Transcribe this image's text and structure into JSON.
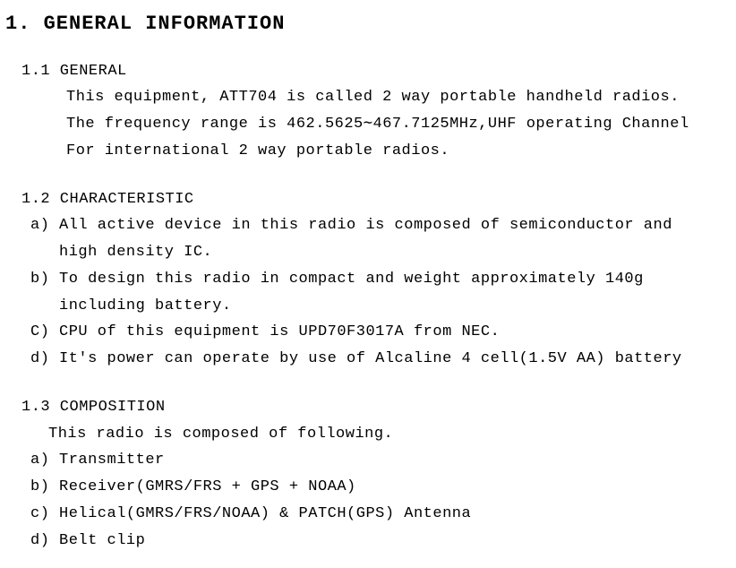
{
  "title": "1. GENERAL INFORMATION",
  "sec_1_1": {
    "heading": "1.1 GENERAL",
    "line1": "This equipment, ATT704 is called 2 way portable handheld radios.",
    "line2": "The frequency range is 462.5625∼467.7125MHz,UHF operating Channel",
    "line3": "For international 2 way portable radios."
  },
  "sec_1_2": {
    "heading": "1.2 CHARACTERISTIC",
    "a_lbl": "a)",
    "a": "All active device in this radio is composed of semiconductor and",
    "a_cont": "high density IC.",
    "b_lbl": "b)",
    "b": "To design this radio in compact and weight approximately 140g",
    "b_cont": "including battery.",
    "c_lbl": "C)",
    "c": "CPU of this equipment is UPD70F3017A from NEC.",
    "d_lbl": "d)",
    "d": "It's power can operate by use of Alcaline 4 cell(1.5V AA) battery"
  },
  "sec_1_3": {
    "heading": "1.3 COMPOSITION",
    "intro": "This radio is composed of following.",
    "a_lbl": "a)",
    "a": "Transmitter",
    "b_lbl": "b)",
    "b": "Receiver(GMRS/FRS + GPS + NOAA)",
    "c_lbl": "c)",
    "c": "Helical(GMRS/FRS/NOAA) & PATCH(GPS) Antenna",
    "d_lbl": "d)",
    "d": "Belt clip"
  }
}
